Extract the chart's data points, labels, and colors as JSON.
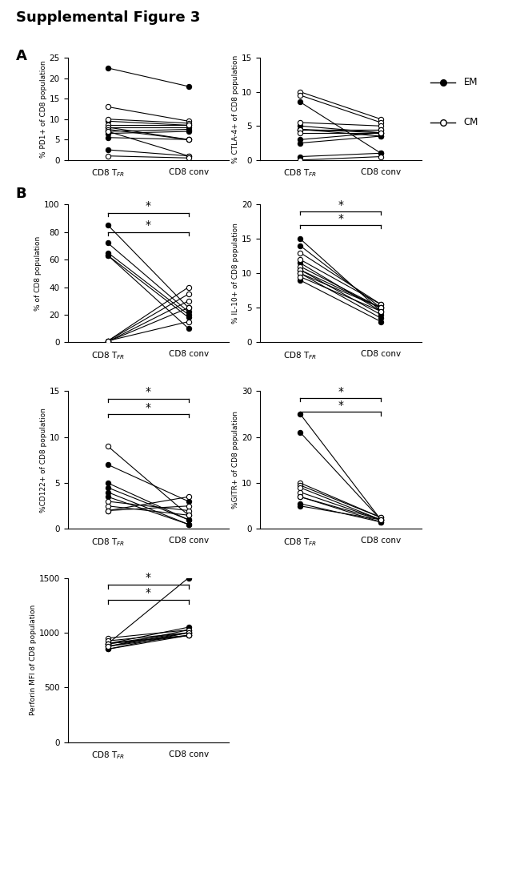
{
  "title": "Supplemental Figure 3",
  "panel_A": {
    "PD1": {
      "pairs": [
        {
          "tfr": 22.5,
          "conv": 18.0,
          "type": "em"
        },
        {
          "tfr": 9.5,
          "conv": 8.5,
          "type": "em"
        },
        {
          "tfr": 8.0,
          "conv": 8.0,
          "type": "em"
        },
        {
          "tfr": 7.0,
          "conv": 7.5,
          "type": "em"
        },
        {
          "tfr": 6.5,
          "conv": 7.0,
          "type": "em"
        },
        {
          "tfr": 5.5,
          "conv": 5.0,
          "type": "em"
        },
        {
          "tfr": 2.5,
          "conv": 1.0,
          "type": "em"
        },
        {
          "tfr": 13.0,
          "conv": 9.5,
          "type": "cm"
        },
        {
          "tfr": 10.0,
          "conv": 9.0,
          "type": "cm"
        },
        {
          "tfr": 8.5,
          "conv": 8.5,
          "type": "cm"
        },
        {
          "tfr": 8.0,
          "conv": 5.0,
          "type": "cm"
        },
        {
          "tfr": 7.5,
          "conv": 5.0,
          "type": "cm"
        },
        {
          "tfr": 7.0,
          "conv": 1.0,
          "type": "cm"
        },
        {
          "tfr": 1.0,
          "conv": 0.5,
          "type": "cm"
        }
      ],
      "ylabel": "% PD1+ of CD8 population",
      "ylim": [
        0,
        25
      ],
      "yticks": [
        0,
        5,
        10,
        15,
        20,
        25
      ],
      "sig": []
    },
    "CTLA4": {
      "pairs": [
        {
          "tfr": 8.5,
          "conv": 1.0,
          "type": "em"
        },
        {
          "tfr": 5.0,
          "conv": 4.0,
          "type": "em"
        },
        {
          "tfr": 4.5,
          "conv": 4.0,
          "type": "em"
        },
        {
          "tfr": 4.5,
          "conv": 3.5,
          "type": "em"
        },
        {
          "tfr": 3.0,
          "conv": 4.0,
          "type": "em"
        },
        {
          "tfr": 2.5,
          "conv": 3.5,
          "type": "em"
        },
        {
          "tfr": 0.5,
          "conv": 1.0,
          "type": "em"
        },
        {
          "tfr": 10.0,
          "conv": 6.0,
          "type": "cm"
        },
        {
          "tfr": 9.5,
          "conv": 5.5,
          "type": "cm"
        },
        {
          "tfr": 5.5,
          "conv": 5.0,
          "type": "cm"
        },
        {
          "tfr": 4.5,
          "conv": 4.5,
          "type": "cm"
        },
        {
          "tfr": 4.5,
          "conv": 4.5,
          "type": "cm"
        },
        {
          "tfr": 4.0,
          "conv": 4.0,
          "type": "cm"
        },
        {
          "tfr": 0.0,
          "conv": 0.5,
          "type": "cm"
        }
      ],
      "ylabel": "% CTLA-4+ of CD8 population",
      "ylim": [
        0,
        15
      ],
      "yticks": [
        0,
        5,
        10,
        15
      ],
      "sig": []
    }
  },
  "panel_B": {
    "percent_cd8": {
      "pairs": [
        {
          "tfr": 85.0,
          "conv": 25.0,
          "type": "em"
        },
        {
          "tfr": 72.0,
          "conv": 22.0,
          "type": "em"
        },
        {
          "tfr": 65.0,
          "conv": 20.0,
          "type": "em"
        },
        {
          "tfr": 63.0,
          "conv": 18.0,
          "type": "em"
        },
        {
          "tfr": 63.0,
          "conv": 10.0,
          "type": "em"
        },
        {
          "tfr": 1.0,
          "conv": 15.0,
          "type": "cm"
        },
        {
          "tfr": 1.0,
          "conv": 40.0,
          "type": "cm"
        },
        {
          "tfr": 1.0,
          "conv": 35.0,
          "type": "cm"
        },
        {
          "tfr": 0.5,
          "conv": 30.0,
          "type": "cm"
        },
        {
          "tfr": 0.5,
          "conv": 25.0,
          "type": "cm"
        }
      ],
      "ylabel": "% of CD8 population",
      "ylim": [
        0,
        100
      ],
      "yticks": [
        0,
        20,
        40,
        60,
        80,
        100
      ],
      "sig": [
        {
          "y": 94,
          "label": "*"
        },
        {
          "y": 80,
          "label": "*"
        }
      ]
    },
    "IL10": {
      "pairs": [
        {
          "tfr": 15.0,
          "conv": 4.5,
          "type": "em"
        },
        {
          "tfr": 14.0,
          "conv": 5.0,
          "type": "em"
        },
        {
          "tfr": 11.5,
          "conv": 4.5,
          "type": "em"
        },
        {
          "tfr": 10.5,
          "conv": 4.0,
          "type": "em"
        },
        {
          "tfr": 10.0,
          "conv": 3.5,
          "type": "em"
        },
        {
          "tfr": 9.0,
          "conv": 3.0,
          "type": "em"
        },
        {
          "tfr": 13.0,
          "conv": 5.5,
          "type": "cm"
        },
        {
          "tfr": 12.0,
          "conv": 5.5,
          "type": "cm"
        },
        {
          "tfr": 11.0,
          "conv": 5.0,
          "type": "cm"
        },
        {
          "tfr": 10.5,
          "conv": 5.0,
          "type": "cm"
        },
        {
          "tfr": 10.0,
          "conv": 5.0,
          "type": "cm"
        },
        {
          "tfr": 9.5,
          "conv": 4.5,
          "type": "cm"
        }
      ],
      "ylabel": "% IL-10+ of CD8 population",
      "ylim": [
        0,
        20
      ],
      "yticks": [
        0,
        5,
        10,
        15,
        20
      ],
      "sig": [
        {
          "y": 19.0,
          "label": "*"
        },
        {
          "y": 17.0,
          "label": "*"
        }
      ]
    },
    "CD122": {
      "pairs": [
        {
          "tfr": 7.0,
          "conv": 3.0,
          "type": "em"
        },
        {
          "tfr": 5.0,
          "conv": 1.0,
          "type": "em"
        },
        {
          "tfr": 4.5,
          "conv": 1.0,
          "type": "em"
        },
        {
          "tfr": 4.0,
          "conv": 0.5,
          "type": "em"
        },
        {
          "tfr": 3.5,
          "conv": 0.5,
          "type": "em"
        },
        {
          "tfr": 9.0,
          "conv": 1.5,
          "type": "cm"
        },
        {
          "tfr": 3.0,
          "conv": 2.0,
          "type": "cm"
        },
        {
          "tfr": 2.5,
          "conv": 1.5,
          "type": "cm"
        },
        {
          "tfr": 2.0,
          "conv": 3.5,
          "type": "cm"
        },
        {
          "tfr": 2.0,
          "conv": 2.5,
          "type": "cm"
        }
      ],
      "ylabel": "%CD122+ of CD8 population",
      "ylim": [
        0,
        15
      ],
      "yticks": [
        0,
        5,
        10,
        15
      ],
      "sig": [
        {
          "y": 14.2,
          "label": "*"
        },
        {
          "y": 12.5,
          "label": "*"
        }
      ]
    },
    "GITR": {
      "pairs": [
        {
          "tfr": 25.0,
          "conv": 2.0,
          "type": "em"
        },
        {
          "tfr": 21.0,
          "conv": 2.0,
          "type": "em"
        },
        {
          "tfr": 7.0,
          "conv": 1.5,
          "type": "em"
        },
        {
          "tfr": 5.5,
          "conv": 1.5,
          "type": "em"
        },
        {
          "tfr": 5.0,
          "conv": 2.0,
          "type": "em"
        },
        {
          "tfr": 10.0,
          "conv": 2.5,
          "type": "cm"
        },
        {
          "tfr": 9.5,
          "conv": 2.5,
          "type": "cm"
        },
        {
          "tfr": 9.0,
          "conv": 2.0,
          "type": "cm"
        },
        {
          "tfr": 8.0,
          "conv": 2.0,
          "type": "cm"
        },
        {
          "tfr": 7.0,
          "conv": 2.0,
          "type": "cm"
        }
      ],
      "ylabel": "%GITR+ of CD8 population",
      "ylim": [
        0,
        30
      ],
      "yticks": [
        0,
        10,
        20,
        30
      ],
      "sig": [
        {
          "y": 28.5,
          "label": "*"
        },
        {
          "y": 25.5,
          "label": "*"
        }
      ]
    },
    "Perforin": {
      "pairs": [
        {
          "tfr": 900.0,
          "conv": 1500.0,
          "type": "em"
        },
        {
          "tfr": 900.0,
          "conv": 1050.0,
          "type": "em"
        },
        {
          "tfr": 875.0,
          "conv": 1025.0,
          "type": "em"
        },
        {
          "tfr": 875.0,
          "conv": 1000.0,
          "type": "em"
        },
        {
          "tfr": 850.0,
          "conv": 1000.0,
          "type": "em"
        },
        {
          "tfr": 850.0,
          "conv": 975.0,
          "type": "em"
        },
        {
          "tfr": 950.0,
          "conv": 1025.0,
          "type": "cm"
        },
        {
          "tfr": 925.0,
          "conv": 1000.0,
          "type": "cm"
        },
        {
          "tfr": 900.0,
          "conv": 1000.0,
          "type": "cm"
        },
        {
          "tfr": 900.0,
          "conv": 975.0,
          "type": "cm"
        },
        {
          "tfr": 900.0,
          "conv": 975.0,
          "type": "cm"
        },
        {
          "tfr": 875.0,
          "conv": 975.0,
          "type": "cm"
        }
      ],
      "ylabel": "Perforin MFI of CD8 population",
      "ylim": [
        0,
        1500
      ],
      "yticks": [
        0,
        500,
        1000,
        1500
      ],
      "sig": [
        {
          "y": 1440,
          "label": "*"
        },
        {
          "y": 1300,
          "label": "*"
        }
      ]
    }
  }
}
